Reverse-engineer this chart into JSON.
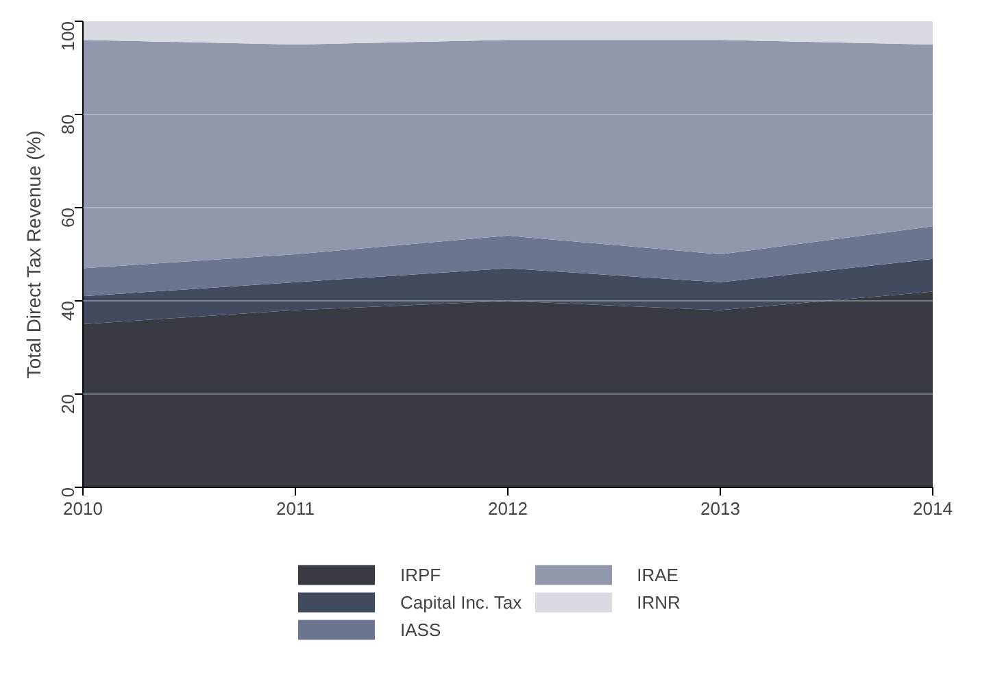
{
  "chart_data": {
    "type": "area",
    "stacked": true,
    "ylabel": "Total Direct Tax Revenue (%)",
    "x": [
      2010,
      2011,
      2012,
      2013,
      2014
    ],
    "xlim": [
      2010,
      2014
    ],
    "xticks": [
      2010,
      2011,
      2012,
      2013,
      2014
    ],
    "ylim": [
      0,
      100
    ],
    "yticks": [
      0,
      20,
      40,
      60,
      80,
      100
    ],
    "grid": "y",
    "legend": "bottom",
    "series": [
      {
        "name": "IRPF",
        "color": "#383b44",
        "values": [
          35,
          38,
          40,
          38,
          42
        ]
      },
      {
        "name": "Capital Inc. Tax",
        "color": "#424a5e",
        "values": [
          6,
          6,
          7,
          6,
          7
        ]
      },
      {
        "name": "IASS",
        "color": "#6b7590",
        "values": [
          6,
          6,
          7,
          6,
          7
        ]
      },
      {
        "name": "IRAE",
        "color": "#9198ab",
        "values": [
          49,
          45,
          42,
          46,
          39
        ]
      },
      {
        "name": "IRNR",
        "color": "#d8dbe2",
        "values": [
          4,
          5,
          4,
          4,
          5
        ]
      }
    ]
  }
}
